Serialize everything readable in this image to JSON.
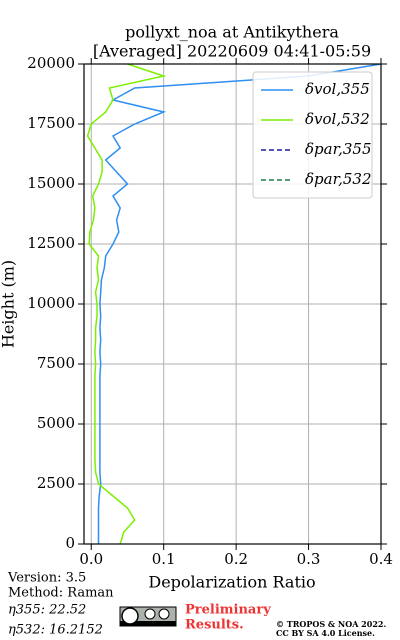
{
  "chart_data": {
    "type": "line",
    "orientation": "vertical",
    "title": [
      "pollyxt_noa at Antikythera",
      "[Averaged] 20220609 04:41-05:59"
    ],
    "xlabel": "Depolarization Ratio",
    "ylabel": "Height (m)",
    "xlim": [
      -0.01,
      0.4
    ],
    "ylim": [
      0,
      20000
    ],
    "xticks": [
      {
        "value": 0,
        "label": "0.0"
      },
      0.1,
      0.2,
      0.3,
      0.4
    ],
    "yticks": [
      0,
      2500,
      5000,
      7500,
      10000,
      12500,
      15000,
      17500,
      20000
    ],
    "grid": true,
    "legend": "upper right",
    "x": [
      0,
      500,
      1000,
      1500,
      2000,
      2500,
      3000,
      3500,
      4000,
      4500,
      5000,
      5500,
      6000,
      6500,
      7000,
      7500,
      8000,
      8500,
      9000,
      9500,
      10000,
      10500,
      11000,
      11500,
      12000,
      12500,
      13000,
      13500,
      14000,
      14500,
      15000,
      15500,
      16000,
      16500,
      17000,
      17500,
      18000,
      18500,
      19000,
      19500,
      20000
    ],
    "series": [
      {
        "name": "δvol,355",
        "color": "#2f8ff0",
        "linestyle": "solid",
        "values": [
          0.01,
          0.01,
          0.01,
          0.01,
          0.011,
          0.013,
          0.012,
          0.012,
          0.012,
          0.012,
          0.012,
          0.012,
          0.012,
          0.012,
          0.012,
          0.013,
          0.012,
          0.013,
          0.012,
          0.013,
          0.012,
          0.013,
          0.014,
          0.018,
          0.02,
          0.03,
          0.038,
          0.035,
          0.04,
          0.03,
          0.05,
          0.035,
          0.02,
          0.04,
          0.03,
          0.06,
          0.1,
          0.03,
          0.06,
          0.3,
          0.4
        ]
      },
      {
        "name": "δvol,532",
        "color": "#7cf000",
        "linestyle": "solid",
        "values": [
          0.04,
          0.045,
          0.06,
          0.05,
          0.03,
          0.01,
          0.006,
          0.005,
          0.005,
          0.005,
          0.005,
          0.005,
          0.005,
          0.005,
          0.005,
          0.006,
          0.005,
          0.006,
          0.006,
          0.008,
          0.008,
          0.006,
          0.01,
          0.008,
          0.01,
          -0.003,
          -0.002,
          0.003,
          0.005,
          0.002,
          0.01,
          0.015,
          0.015,
          0.005,
          -0.005,
          0.0,
          0.02,
          0.03,
          0.025,
          0.1,
          0.05
        ]
      },
      {
        "name": "δpar,355",
        "color": "#1a1aa0",
        "linestyle": "dashed",
        "values": [
          null,
          null,
          null,
          null,
          null,
          null,
          null,
          null,
          null,
          null,
          null,
          null,
          null,
          null,
          null,
          null,
          null,
          null,
          null,
          null,
          null,
          null,
          null,
          null,
          null,
          null,
          null,
          null,
          null,
          null,
          null,
          null,
          null,
          null,
          null,
          null,
          null,
          null,
          null,
          null,
          null
        ]
      },
      {
        "name": "δpar,532",
        "color": "#1a8040",
        "linestyle": "dashed",
        "values": [
          null,
          null,
          null,
          null,
          null,
          null,
          null,
          null,
          null,
          null,
          null,
          null,
          null,
          null,
          null,
          null,
          null,
          null,
          null,
          null,
          null,
          null,
          null,
          null,
          null,
          null,
          null,
          null,
          null,
          null,
          null,
          null,
          null,
          null,
          null,
          null,
          null,
          null,
          null,
          null,
          null
        ]
      }
    ]
  },
  "footer": {
    "version": "Version: 3.5",
    "method": "Method: Raman",
    "eta355": "η355:  22.52",
    "eta532": "η532: 16.2152",
    "preliminary": [
      "Preliminary",
      "Results."
    ],
    "copyright": "© TROPOS & NOA 2022.",
    "license": "CC BY SA 4.0 License."
  }
}
